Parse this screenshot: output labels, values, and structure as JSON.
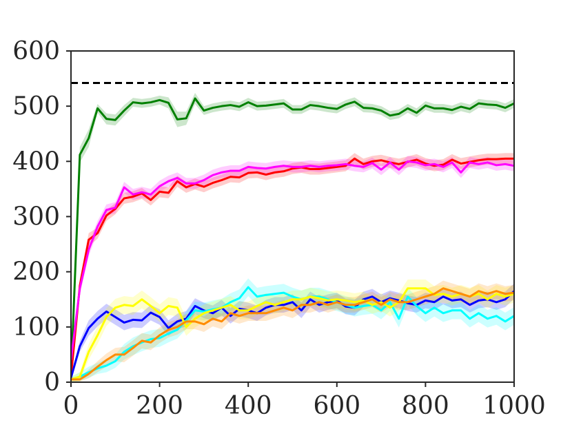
{
  "chart_data": {
    "type": "line",
    "title": "",
    "xlabel": "",
    "ylabel": "",
    "xlim": [
      0,
      1000
    ],
    "ylim": [
      0,
      600
    ],
    "xticks": [
      "0",
      "200",
      "400",
      "600",
      "800",
      "1000"
    ],
    "yticks": [
      "0",
      "100",
      "200",
      "300",
      "400",
      "500",
      "600"
    ],
    "grid": false,
    "legend": "none",
    "reference_line": {
      "y": 542,
      "style": "dashed",
      "color": "#000000"
    },
    "x": [
      0,
      20,
      40,
      60,
      80,
      100,
      120,
      140,
      160,
      180,
      200,
      220,
      240,
      260,
      280,
      300,
      320,
      340,
      360,
      380,
      400,
      420,
      440,
      460,
      480,
      500,
      520,
      540,
      560,
      580,
      600,
      620,
      640,
      660,
      680,
      700,
      720,
      740,
      760,
      780,
      800,
      820,
      840,
      860,
      880,
      900,
      920,
      940,
      960,
      980,
      1000
    ],
    "series": [
      {
        "color": "#008000",
        "values": [
          10,
          412,
          442,
          496,
          477,
          475,
          492,
          507,
          505,
          507,
          511,
          506,
          476,
          478,
          514,
          492,
          497,
          500,
          502,
          499,
          507,
          500,
          501,
          503,
          505,
          494,
          494,
          502,
          500,
          497,
          495,
          503,
          508,
          497,
          496,
          492,
          483,
          486,
          496,
          488,
          501,
          496,
          496,
          493,
          499,
          495,
          505,
          503,
          502,
          497,
          505
        ],
        "band": [
          6,
          14,
          16,
          8,
          10,
          10,
          10,
          8,
          8,
          8,
          8,
          10,
          14,
          12,
          10,
          8,
          8,
          8,
          8,
          8,
          8,
          8,
          8,
          8,
          8,
          8,
          8,
          8,
          8,
          8,
          8,
          8,
          8,
          8,
          8,
          8,
          8,
          8,
          8,
          8,
          8,
          8,
          8,
          8,
          8,
          8,
          8,
          8,
          8,
          8,
          8
        ]
      },
      {
        "color": "#ff0000",
        "values": [
          10,
          175,
          258,
          270,
          302,
          314,
          333,
          336,
          342,
          330,
          345,
          343,
          364,
          353,
          359,
          354,
          361,
          366,
          372,
          371,
          379,
          380,
          376,
          380,
          382,
          387,
          389,
          386,
          386,
          388,
          390,
          392,
          405,
          395,
          400,
          402,
          398,
          395,
          399,
          403,
          396,
          392,
          394,
          403,
          396,
          399,
          402,
          404,
          404,
          405,
          405
        ],
        "band": [
          6,
          12,
          12,
          10,
          10,
          10,
          10,
          10,
          10,
          10,
          10,
          10,
          10,
          10,
          10,
          10,
          10,
          10,
          10,
          10,
          10,
          10,
          10,
          10,
          10,
          10,
          10,
          10,
          10,
          10,
          10,
          10,
          10,
          10,
          10,
          10,
          10,
          10,
          10,
          10,
          10,
          10,
          10,
          10,
          10,
          10,
          10,
          10,
          10,
          10,
          10
        ]
      },
      {
        "color": "#ff00ff",
        "values": [
          40,
          170,
          240,
          282,
          312,
          316,
          353,
          340,
          344,
          340,
          355,
          364,
          370,
          360,
          360,
          366,
          375,
          380,
          383,
          383,
          390,
          388,
          387,
          390,
          392,
          390,
          390,
          392,
          390,
          392,
          393,
          395,
          392,
          390,
          397,
          385,
          398,
          385,
          400,
          398,
          393,
          395,
          390,
          398,
          380,
          398,
          395,
          398,
          393,
          395,
          392
        ],
        "band": [
          8,
          12,
          12,
          10,
          10,
          10,
          10,
          10,
          10,
          10,
          10,
          10,
          10,
          10,
          10,
          10,
          10,
          10,
          10,
          10,
          10,
          10,
          10,
          10,
          10,
          10,
          10,
          10,
          10,
          10,
          10,
          10,
          10,
          10,
          10,
          10,
          10,
          10,
          10,
          10,
          10,
          10,
          10,
          10,
          10,
          10,
          10,
          10,
          10,
          10,
          10
        ]
      },
      {
        "color": "#0000ff",
        "values": [
          8,
          65,
          98,
          115,
          128,
          118,
          108,
          113,
          112,
          126,
          118,
          98,
          110,
          115,
          138,
          130,
          125,
          135,
          120,
          133,
          130,
          125,
          135,
          140,
          140,
          145,
          130,
          150,
          140,
          145,
          148,
          137,
          135,
          150,
          155,
          145,
          152,
          148,
          143,
          140,
          148,
          145,
          155,
          148,
          150,
          140,
          148,
          150,
          145,
          150,
          165
        ],
        "band": [
          6,
          10,
          14,
          14,
          14,
          14,
          14,
          14,
          14,
          14,
          14,
          14,
          14,
          14,
          14,
          14,
          14,
          14,
          14,
          14,
          14,
          14,
          14,
          14,
          14,
          14,
          14,
          14,
          14,
          14,
          14,
          14,
          14,
          14,
          14,
          14,
          14,
          14,
          14,
          14,
          14,
          14,
          14,
          14,
          14,
          14,
          14,
          14,
          14,
          14,
          14
        ]
      },
      {
        "color": "#00ffff",
        "values": [
          5,
          10,
          18,
          25,
          30,
          38,
          55,
          65,
          72,
          78,
          80,
          88,
          95,
          112,
          130,
          128,
          132,
          135,
          145,
          152,
          172,
          155,
          158,
          160,
          162,
          155,
          150,
          155,
          155,
          150,
          145,
          140,
          135,
          138,
          140,
          130,
          145,
          115,
          155,
          138,
          125,
          135,
          125,
          130,
          130,
          115,
          125,
          115,
          120,
          110,
          120
        ],
        "band": [
          5,
          8,
          10,
          10,
          12,
          12,
          14,
          16,
          16,
          16,
          16,
          16,
          16,
          16,
          16,
          16,
          16,
          16,
          16,
          16,
          16,
          16,
          16,
          16,
          16,
          16,
          16,
          16,
          16,
          16,
          16,
          16,
          16,
          16,
          16,
          16,
          16,
          16,
          16,
          16,
          16,
          16,
          16,
          16,
          16,
          16,
          16,
          16,
          16,
          16,
          16
        ]
      },
      {
        "color": "#ffff00",
        "values": [
          5,
          10,
          55,
          85,
          118,
          135,
          140,
          138,
          150,
          138,
          125,
          138,
          135,
          100,
          115,
          125,
          130,
          135,
          140,
          130,
          130,
          138,
          145,
          140,
          145,
          150,
          150,
          155,
          152,
          148,
          150,
          148,
          145,
          148,
          140,
          145,
          135,
          145,
          170,
          170,
          170,
          158,
          160,
          155,
          160,
          155,
          160,
          150,
          160,
          155,
          160
        ],
        "band": [
          4,
          8,
          14,
          16,
          16,
          16,
          16,
          16,
          16,
          16,
          16,
          16,
          16,
          16,
          16,
          16,
          16,
          16,
          16,
          16,
          16,
          16,
          16,
          16,
          16,
          16,
          16,
          16,
          16,
          16,
          16,
          16,
          16,
          16,
          16,
          16,
          16,
          16,
          16,
          16,
          16,
          16,
          16,
          16,
          16,
          16,
          16,
          16,
          16,
          16,
          16
        ]
      },
      {
        "color": "#ff8c00",
        "values": [
          5,
          5,
          15,
          28,
          40,
          50,
          50,
          62,
          75,
          72,
          85,
          95,
          100,
          110,
          110,
          105,
          115,
          110,
          125,
          120,
          125,
          125,
          125,
          130,
          135,
          130,
          140,
          140,
          145,
          140,
          145,
          140,
          140,
          145,
          150,
          140,
          150,
          145,
          145,
          150,
          155,
          160,
          170,
          165,
          160,
          155,
          165,
          160,
          165,
          160,
          162
        ],
        "band": [
          4,
          4,
          8,
          10,
          12,
          12,
          14,
          14,
          14,
          14,
          14,
          14,
          14,
          14,
          14,
          14,
          14,
          14,
          14,
          14,
          14,
          14,
          14,
          14,
          14,
          14,
          14,
          14,
          14,
          14,
          14,
          14,
          14,
          14,
          14,
          14,
          14,
          14,
          14,
          14,
          14,
          14,
          14,
          14,
          14,
          14,
          14,
          14,
          14,
          14,
          14
        ]
      }
    ]
  }
}
